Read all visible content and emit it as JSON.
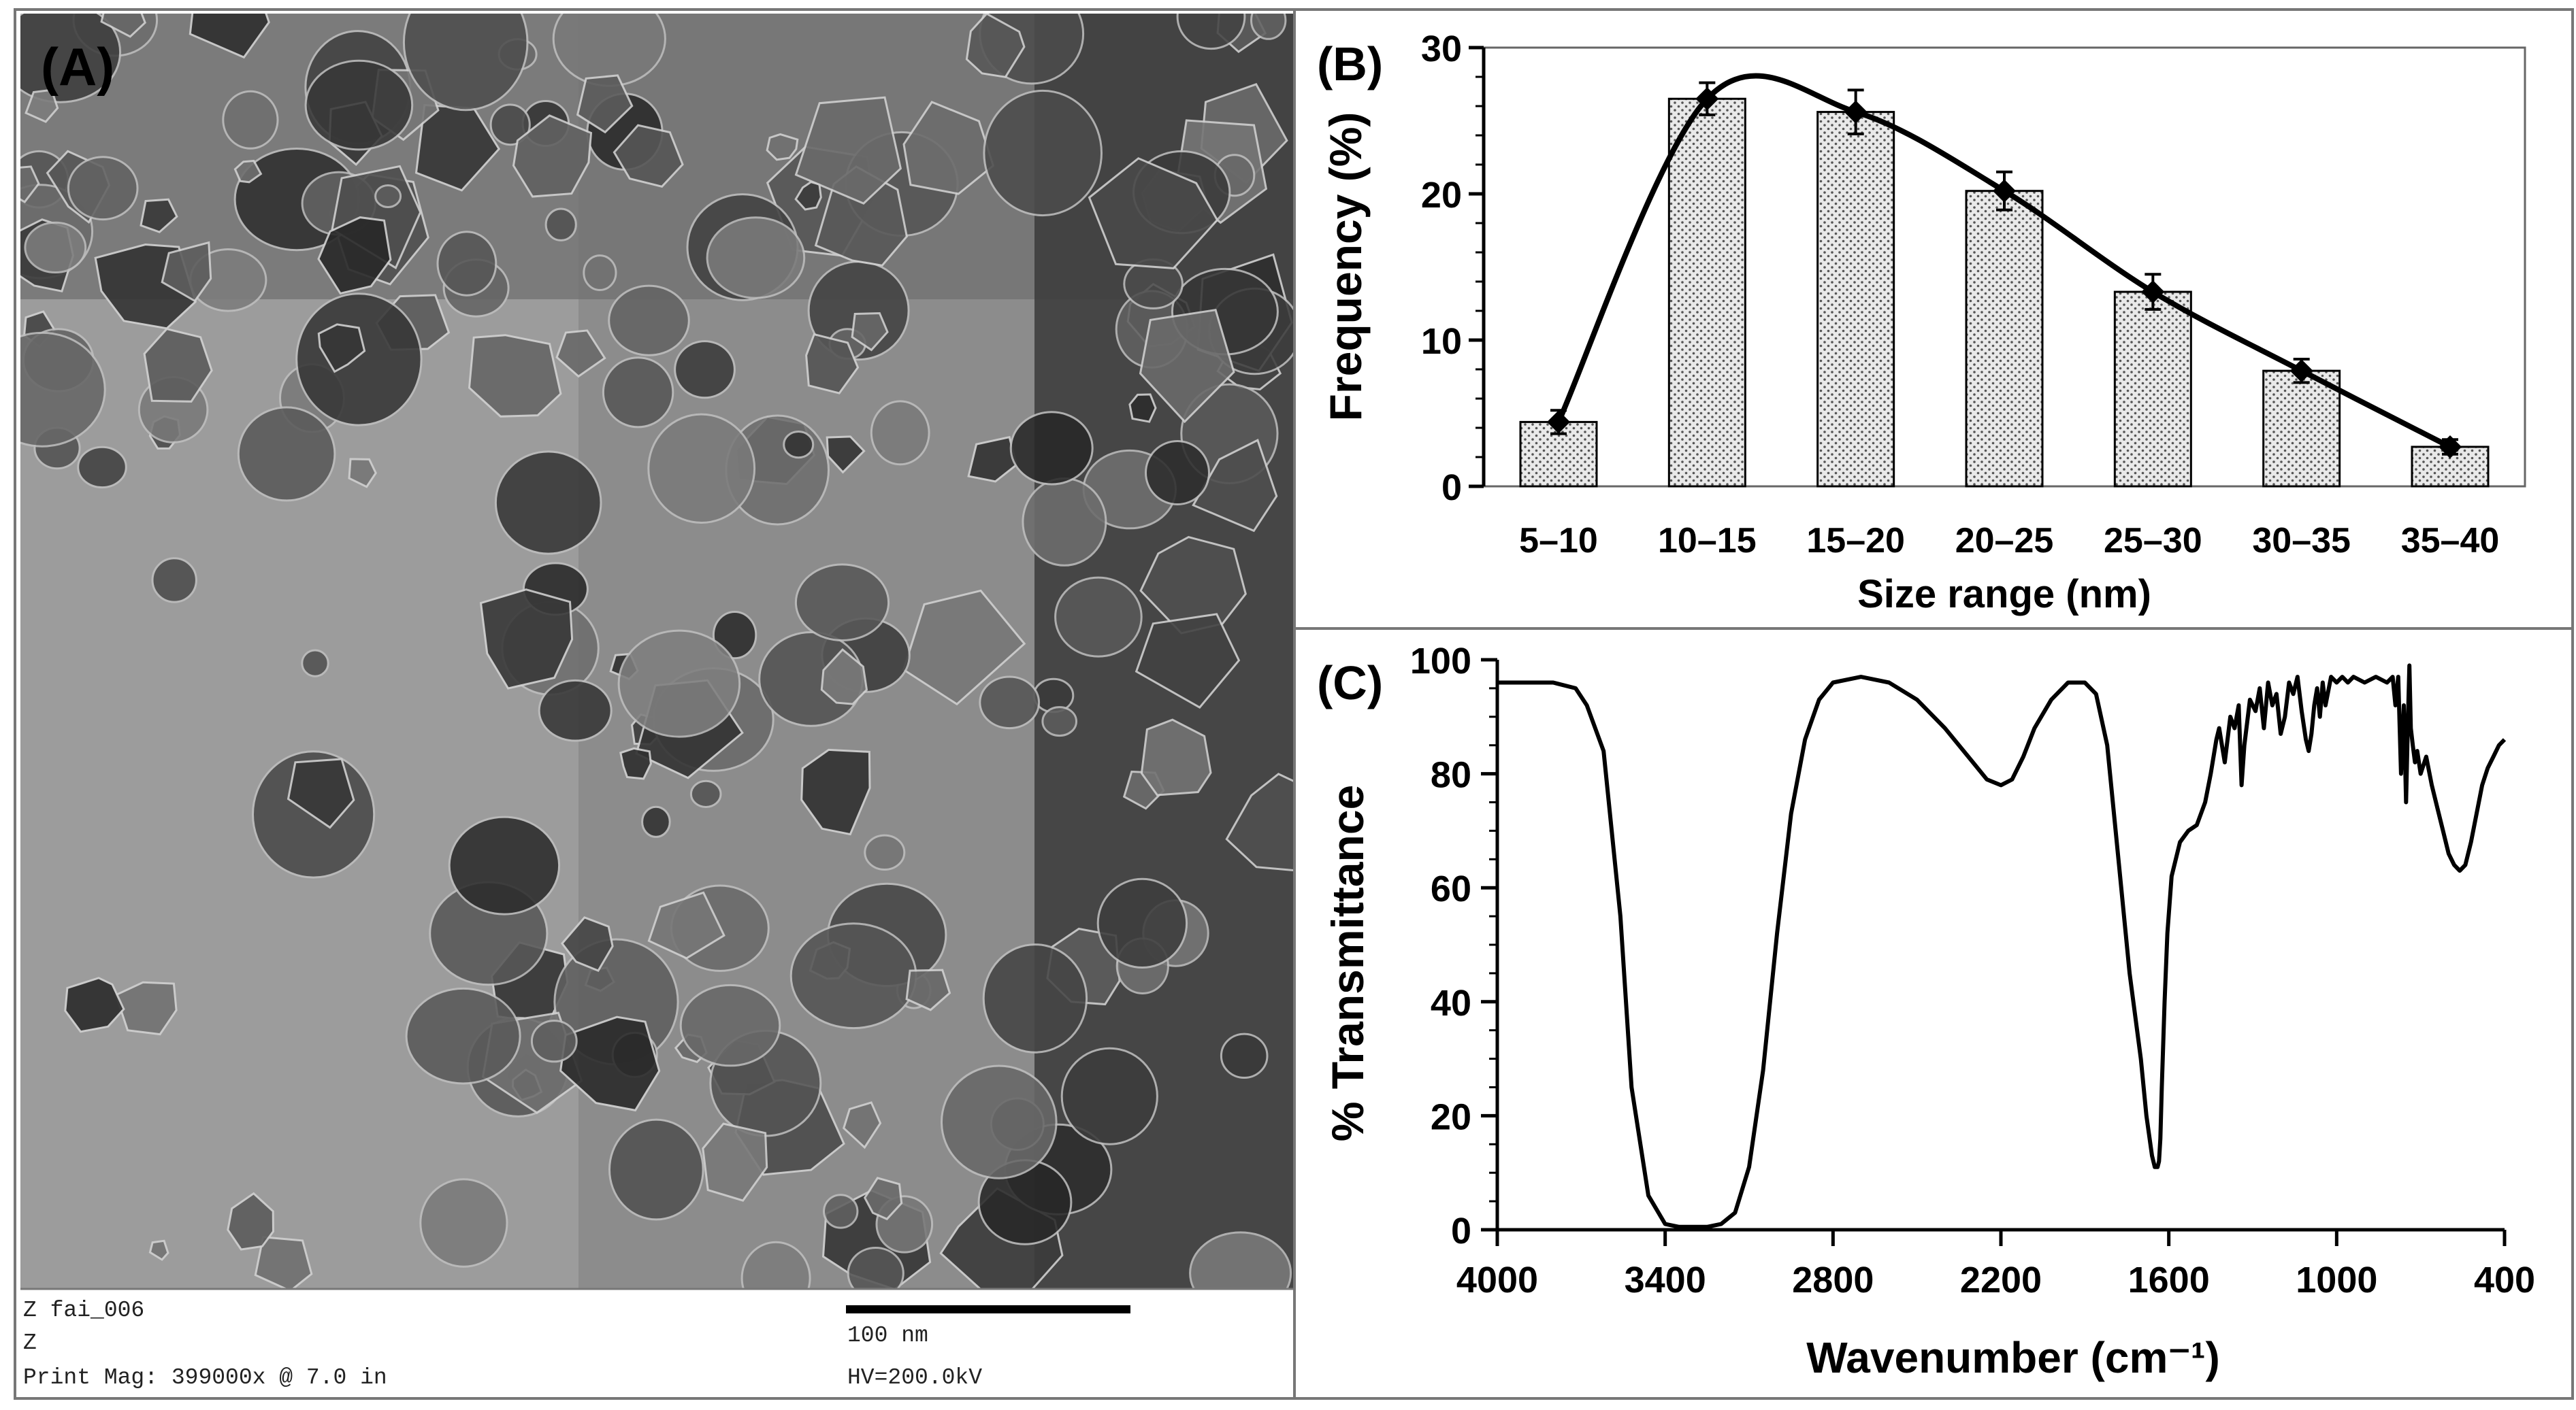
{
  "panels": {
    "A": {
      "label": "(A)",
      "info": {
        "line1": "Z fai_006",
        "line2": "Z",
        "line3": "Print Mag:  399000x @ 7.0 in",
        "scale_bar": "100 nm",
        "voltage": "HV=200.0kV"
      }
    },
    "B": {
      "label": "(B)"
    },
    "C": {
      "label": "(C)"
    }
  },
  "chart_data": [
    {
      "panel": "B",
      "type": "bar",
      "title": "",
      "xlabel": "Size range (nm)",
      "ylabel": "Frequency (%)",
      "categories": [
        "5–10",
        "10–15",
        "15–20",
        "20–25",
        "25–30",
        "30–35",
        "35–40"
      ],
      "values": [
        4.4,
        26.5,
        25.6,
        20.2,
        13.3,
        7.9,
        2.7
      ],
      "errors": [
        0.8,
        1.1,
        1.5,
        1.3,
        1.2,
        0.8,
        0.5
      ],
      "ylim": [
        0,
        30
      ],
      "yticks": [
        "0",
        "10",
        "20",
        "30"
      ],
      "smooth_line": true,
      "grid": false,
      "bar_fill": "dotted"
    },
    {
      "panel": "C",
      "type": "line",
      "title": "",
      "xlabel": "Wavenumber (cm⁻¹)",
      "ylabel": "% Transmittance",
      "xlim": [
        4000,
        400
      ],
      "ylim": [
        0,
        100
      ],
      "xticks": [
        "4000",
        "3400",
        "2800",
        "2200",
        "1600",
        "1000",
        "400"
      ],
      "yticks": [
        "0",
        "20",
        "40",
        "60",
        "80",
        "100"
      ],
      "grid": false,
      "x": [
        4000,
        3800,
        3720,
        3680,
        3620,
        3560,
        3520,
        3460,
        3400,
        3350,
        3300,
        3250,
        3200,
        3150,
        3100,
        3050,
        3000,
        2950,
        2900,
        2850,
        2800,
        2700,
        2600,
        2500,
        2400,
        2300,
        2250,
        2200,
        2160,
        2120,
        2080,
        2020,
        1960,
        1900,
        1860,
        1820,
        1780,
        1740,
        1700,
        1680,
        1660,
        1650,
        1640,
        1635,
        1630,
        1625,
        1615,
        1605,
        1590,
        1560,
        1530,
        1500,
        1470,
        1450,
        1430,
        1420,
        1400,
        1380,
        1365,
        1350,
        1340,
        1330,
        1310,
        1290,
        1275,
        1260,
        1245,
        1230,
        1215,
        1200,
        1185,
        1170,
        1155,
        1140,
        1125,
        1110,
        1100,
        1090,
        1080,
        1070,
        1060,
        1050,
        1040,
        1020,
        1000,
        980,
        960,
        940,
        900,
        860,
        820,
        800,
        790,
        780,
        770,
        760,
        752,
        745,
        740,
        735,
        728,
        720,
        712,
        700,
        680,
        660,
        640,
        620,
        600,
        580,
        560,
        540,
        520,
        500,
        480,
        460,
        440,
        420,
        400
      ],
      "y": [
        96,
        96,
        95,
        92,
        84,
        55,
        25,
        6,
        1,
        0.5,
        0.5,
        0.5,
        1,
        3,
        11,
        28,
        52,
        73,
        86,
        93,
        96,
        97,
        96,
        93,
        88,
        82,
        79,
        78,
        79,
        83,
        88,
        93,
        96,
        96,
        94,
        85,
        65,
        45,
        30,
        20,
        13,
        11,
        11,
        12,
        16,
        25,
        40,
        52,
        62,
        68,
        70,
        71,
        75,
        80,
        86,
        88,
        82,
        90,
        88,
        92,
        78,
        85,
        93,
        91,
        95,
        88,
        96,
        92,
        94,
        87,
        90,
        96,
        94,
        97,
        91,
        86,
        84,
        87,
        92,
        95,
        90,
        96,
        92,
        97,
        96,
        97,
        96,
        97,
        96,
        97,
        96,
        97,
        92,
        97,
        80,
        92,
        75,
        90,
        99,
        88,
        85,
        82,
        84,
        80,
        83,
        78,
        74,
        70,
        66,
        64,
        63,
        64,
        68,
        73,
        78,
        81,
        83,
        85,
        86
      ]
    }
  ]
}
